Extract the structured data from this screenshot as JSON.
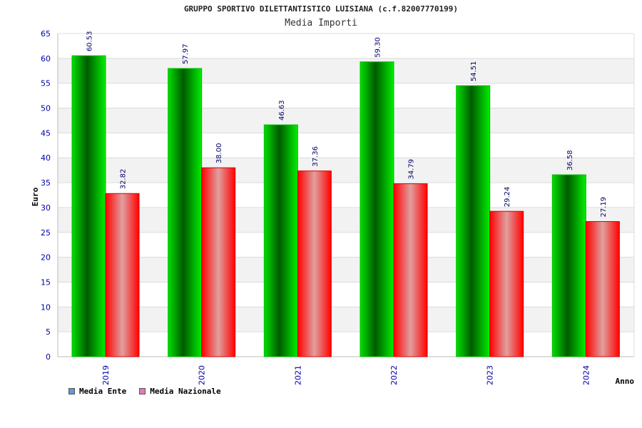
{
  "header": {
    "title": "GRUPPO SPORTIVO DILETTANTISTICO LUISIANA (c.f.82007770199)",
    "subtitle": "Media Importi"
  },
  "chart_data": {
    "type": "bar",
    "title": "Media Importi",
    "xlabel": "Anno",
    "ylabel": "Euro",
    "categories": [
      "2019",
      "2020",
      "2021",
      "2022",
      "2023",
      "2024"
    ],
    "ylim": [
      0,
      65
    ],
    "yticks": [
      0,
      5,
      10,
      15,
      20,
      25,
      30,
      35,
      40,
      45,
      50,
      55,
      60,
      65
    ],
    "grid": true,
    "legend_placement": "bottom-left",
    "series": [
      {
        "name": "Media Ente",
        "values": [
          60.53,
          57.97,
          46.63,
          59.3,
          54.51,
          36.58
        ],
        "labels": [
          "60.53",
          "57.97",
          "46.63",
          "59.30",
          "54.51",
          "36.58"
        ],
        "color": "#00cc00",
        "legend_color": "#5b9bd5"
      },
      {
        "name": "Media Nazionale",
        "values": [
          32.82,
          38.0,
          37.36,
          34.79,
          29.24,
          27.19
        ],
        "labels": [
          "32.82",
          "38.00",
          "37.36",
          "34.79",
          "29.24",
          "27.19"
        ],
        "color": "#ff1a1a",
        "legend_color": "#e07cb4"
      }
    ]
  }
}
